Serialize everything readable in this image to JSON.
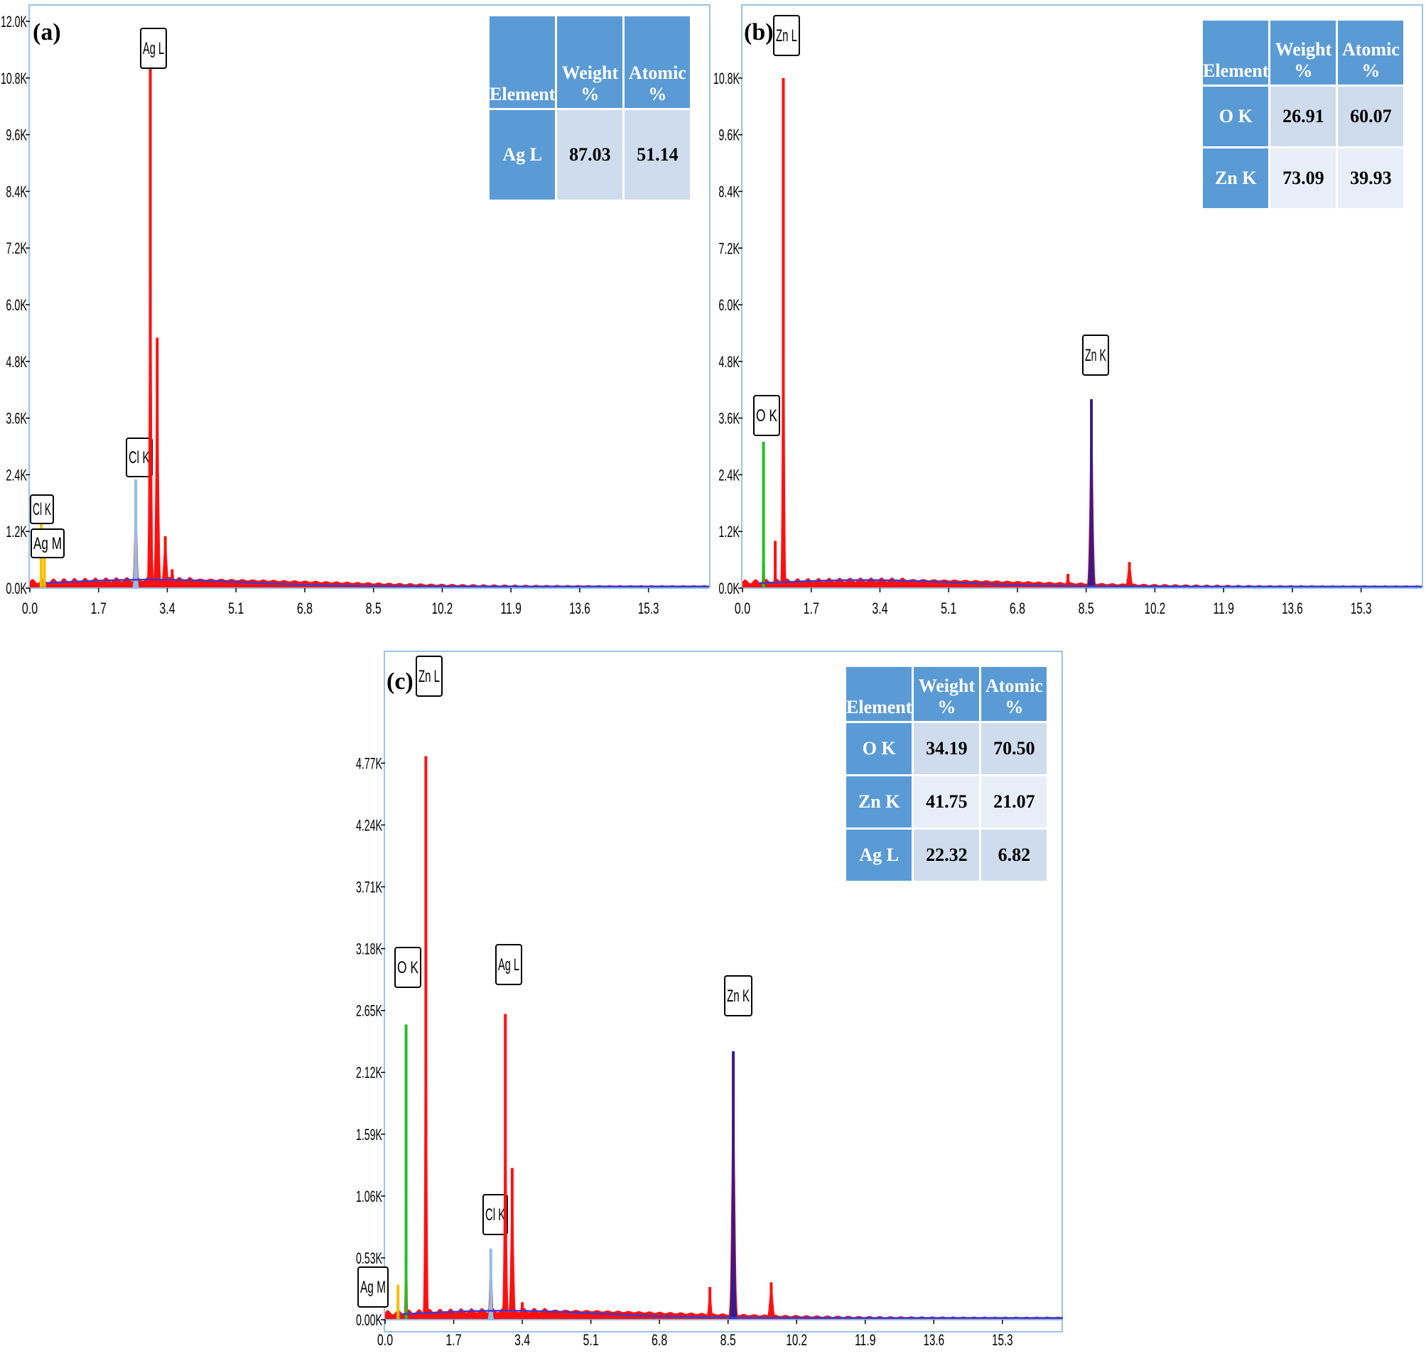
{
  "chart_data": [
    {
      "type": "area",
      "panel_label": "(a)",
      "x_ticks": [
        "0.0",
        "1.7",
        "3.4",
        "5.1",
        "6.8",
        "8.5",
        "10.2",
        "11.9",
        "13.6",
        "15.3"
      ],
      "y_ticks": [
        "0.0K",
        "1.2K",
        "2.4K",
        "3.6K",
        "4.8K",
        "6.0K",
        "7.2K",
        "8.4K",
        "9.6K",
        "10.8K",
        "12.0K"
      ],
      "xlim": [
        0,
        16.8
      ],
      "ylim": [
        0,
        12000
      ],
      "peaks": [
        {
          "x": 0.28,
          "y": 1500,
          "w": 0.02,
          "color": "#f5c000",
          "label": "Cl K"
        },
        {
          "x": 0.36,
          "y": 800,
          "w": 0.02,
          "color": "#f5c000",
          "label": "Ag M"
        },
        {
          "x": 2.62,
          "y": 2300,
          "w": 0.045,
          "color": "#8fbfe8",
          "label": "Cl K"
        },
        {
          "x": 2.98,
          "y": 11000,
          "w": 0.04,
          "color": "#ff1010",
          "label": "Ag L"
        },
        {
          "x": 3.15,
          "y": 5300,
          "w": 0.05,
          "color": "#ff1010",
          "label": ""
        },
        {
          "x": 3.35,
          "y": 1100,
          "w": 0.06,
          "color": "#ff1010",
          "label": ""
        },
        {
          "x": 3.52,
          "y": 400,
          "w": 0.06,
          "color": "#ff1010",
          "label": ""
        }
      ],
      "table": {
        "headers": [
          "Element",
          "Weight %",
          "Atomic  %"
        ],
        "rows": [
          [
            "Ag L",
            "87.03",
            "51.14"
          ]
        ]
      }
    },
    {
      "type": "area",
      "panel_label": "(b)",
      "x_ticks": [
        "0.0",
        "1.7",
        "3.4",
        "5.1",
        "6.8",
        "8.5",
        "10.2",
        "11.9",
        "13.6",
        "15.3"
      ],
      "y_ticks": [
        "0.0K",
        "1.2K",
        "2.4K",
        "3.6K",
        "4.8K",
        "6.0K",
        "7.2K",
        "8.4K",
        "9.6K",
        "10.8K"
      ],
      "xlim": [
        0,
        16.8
      ],
      "ylim": [
        0,
        11400
      ],
      "peaks": [
        {
          "x": 0.52,
          "y": 3100,
          "w": 0.025,
          "color": "#22c022",
          "label": "O K"
        },
        {
          "x": 0.81,
          "y": 1000,
          "w": 0.03,
          "color": "#ff1010",
          "label": ""
        },
        {
          "x": 1.01,
          "y": 10800,
          "w": 0.035,
          "color": "#ff1010",
          "label": "Zn L"
        },
        {
          "x": 8.05,
          "y": 300,
          "w": 0.05,
          "color": "#ff1010",
          "label": ""
        },
        {
          "x": 8.63,
          "y": 4000,
          "w": 0.055,
          "color": "#3a1a8a",
          "label": "Zn K"
        },
        {
          "x": 9.57,
          "y": 550,
          "w": 0.06,
          "color": "#ff1010",
          "label": ""
        }
      ],
      "table": {
        "headers": [
          "Element",
          "Weight %",
          "Atomic  %"
        ],
        "rows": [
          [
            "O  K",
            "26.91",
            "60.07"
          ],
          [
            "Zn  K",
            "73.09",
            "39.93"
          ]
        ]
      }
    },
    {
      "type": "area",
      "panel_label": "(c)",
      "x_ticks": [
        "0.0",
        "1.7",
        "3.4",
        "5.1",
        "6.8",
        "8.5",
        "10.2",
        "11.9",
        "13.6",
        "15.3"
      ],
      "y_ticks": [
        "0.00K",
        "0.53K",
        "1.06K",
        "1.59K",
        "2.12K",
        "2.65K",
        "3.18K",
        "3.71K",
        "4.24K",
        "4.77K"
      ],
      "xlim": [
        0,
        16.8
      ],
      "ylim": [
        0,
        5150
      ],
      "peaks": [
        {
          "x": 0.32,
          "y": 300,
          "w": 0.02,
          "color": "#f5c000",
          "label": "Ag M"
        },
        {
          "x": 0.52,
          "y": 2530,
          "w": 0.025,
          "color": "#22c022",
          "label": "O K"
        },
        {
          "x": 1.01,
          "y": 4830,
          "w": 0.035,
          "color": "#ff1010",
          "label": "Zn L"
        },
        {
          "x": 2.62,
          "y": 610,
          "w": 0.045,
          "color": "#8fbfe8",
          "label": "Cl K"
        },
        {
          "x": 2.98,
          "y": 2620,
          "w": 0.04,
          "color": "#ff1010",
          "label": "Ag L"
        },
        {
          "x": 3.15,
          "y": 1300,
          "w": 0.05,
          "color": "#ff1010",
          "label": ""
        },
        {
          "x": 3.4,
          "y": 150,
          "w": 0.06,
          "color": "#ff1010",
          "label": ""
        },
        {
          "x": 8.05,
          "y": 280,
          "w": 0.05,
          "color": "#ff1010",
          "label": ""
        },
        {
          "x": 8.63,
          "y": 2300,
          "w": 0.055,
          "color": "#3a1a8a",
          "label": "Zn K"
        },
        {
          "x": 9.57,
          "y": 320,
          "w": 0.06,
          "color": "#ff1010",
          "label": ""
        }
      ],
      "table": {
        "headers": [
          "Element",
          "Weight %",
          "Atomic  %"
        ],
        "rows": [
          [
            "O  K",
            "34.19",
            "70.50"
          ],
          [
            "Zn  K",
            "41.75",
            "21.07"
          ],
          [
            "Ag L",
            "22.32",
            "6.82"
          ]
        ]
      }
    }
  ]
}
